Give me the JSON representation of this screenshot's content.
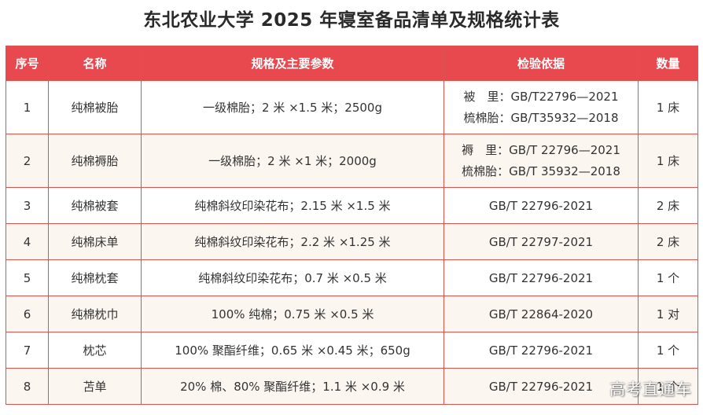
{
  "title": "东北农业大学 2025 年寝室备品清单及规格统计表",
  "headers": {
    "index": "序号",
    "name": "名称",
    "spec": "规格及主要参数",
    "basis": "检验依据",
    "qty": "数量"
  },
  "rows": [
    {
      "index": "1",
      "name": "纯棉被胎",
      "spec": "一级棉胎；2 米 ×1.5 米；2500g",
      "basis": [
        "被　里：GB/T22796—2021",
        "梳棉胎：GB/T35932—2018"
      ],
      "qty": "1 床"
    },
    {
      "index": "2",
      "name": "纯棉褥胎",
      "spec": "一级棉胎；2 米 ×1 米；2000g",
      "basis": [
        "褥　里：GB/T 22796—2021",
        "梳棉胎：GB/T 35932—2018"
      ],
      "qty": "1 床"
    },
    {
      "index": "3",
      "name": "纯棉被套",
      "spec": "纯棉斜纹印染花布；2.15 米 ×1.5 米",
      "basis": [
        "GB/T 22796-2021"
      ],
      "qty": "2 床"
    },
    {
      "index": "4",
      "name": "纯棉床单",
      "spec": "纯棉斜纹印染花布；2.2 米 ×1.25 米",
      "basis": [
        "GB/T 22797-2021"
      ],
      "qty": "2 床"
    },
    {
      "index": "5",
      "name": "纯棉枕套",
      "spec": "纯棉斜纹印染花布；0.7 米 ×0.5 米",
      "basis": [
        "GB/T 22796-2021"
      ],
      "qty": "1 个"
    },
    {
      "index": "6",
      "name": "纯棉枕巾",
      "spec": "100% 纯棉；0.75 米 ×0.5 米",
      "basis": [
        "GB/T 22864-2020"
      ],
      "qty": "1 对"
    },
    {
      "index": "7",
      "name": "枕芯",
      "spec": "100% 聚酯纤维；0.65 米 ×0.45 米；650g",
      "basis": [
        "GB/T 22796-2021"
      ],
      "qty": "1 个"
    },
    {
      "index": "8",
      "name": "苫单",
      "spec": "20% 棉、80% 聚酯纤维；1.1 米 ×0.9 米",
      "basis": [
        "GB/T 22796-2021"
      ],
      "qty": "1 个"
    }
  ],
  "watermark": "高考直通车",
  "colors": {
    "header_bg": "#e8494f",
    "border": "#d9534f",
    "alt_row_bg": "#fcf6f1"
  }
}
